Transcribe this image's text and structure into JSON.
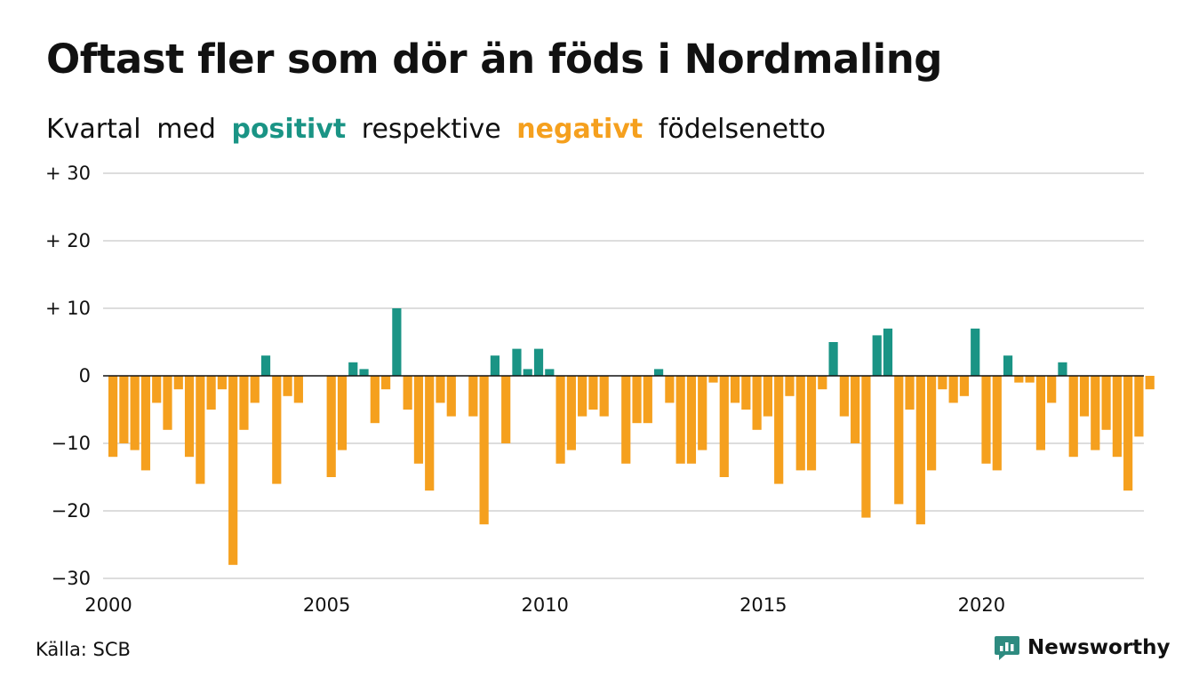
{
  "title": "Oftast fler som dör än föds i Nordmaling",
  "subtitle": {
    "part1": "Kvartal",
    "part2": "med",
    "positive": "positivt",
    "part3": "respektive",
    "negative": "negativt",
    "part4": "födelsenetto"
  },
  "source": "Källa: SCB",
  "brand": "Newsworthy",
  "colors": {
    "positive": "#1a9485",
    "negative": "#f5a01e",
    "grid": "#dddddd",
    "zero": "#111111",
    "text": "#111111"
  },
  "chart_data": {
    "type": "bar",
    "title": "Oftast fler som dör än föds i Nordmaling",
    "subtitle": "Kvartal med positivt respektive negativt födelsenetto",
    "x_start": "2000-Q1",
    "x_ticks": [
      "2000",
      "2005",
      "2010",
      "2015",
      "2020"
    ],
    "y_ticks": [
      {
        "value": 30,
        "label": "+ 30"
      },
      {
        "value": 20,
        "label": "+ 20"
      },
      {
        "value": 10,
        "label": "+ 10"
      },
      {
        "value": 0,
        "label": "0"
      },
      {
        "value": -10,
        "label": "−10"
      },
      {
        "value": -20,
        "label": "−20"
      },
      {
        "value": -30,
        "label": "−30"
      }
    ],
    "ylim": [
      -30,
      30
    ],
    "grid": true,
    "categories": [
      "2000-Q1",
      "2000-Q2",
      "2000-Q3",
      "2000-Q4",
      "2001-Q1",
      "2001-Q2",
      "2001-Q3",
      "2001-Q4",
      "2002-Q1",
      "2002-Q2",
      "2002-Q3",
      "2002-Q4",
      "2003-Q1",
      "2003-Q2",
      "2003-Q3",
      "2003-Q4",
      "2004-Q1",
      "2004-Q2",
      "2004-Q3",
      "2004-Q4",
      "2005-Q1",
      "2005-Q2",
      "2005-Q3",
      "2005-Q4",
      "2006-Q1",
      "2006-Q2",
      "2006-Q3",
      "2006-Q4",
      "2007-Q1",
      "2007-Q2",
      "2007-Q3",
      "2007-Q4",
      "2008-Q1",
      "2008-Q2",
      "2008-Q3",
      "2008-Q4",
      "2009-Q1",
      "2009-Q2",
      "2009-Q3",
      "2009-Q4",
      "2010-Q1",
      "2010-Q2",
      "2010-Q3",
      "2010-Q4",
      "2011-Q1",
      "2011-Q2",
      "2011-Q3",
      "2011-Q4",
      "2012-Q1",
      "2012-Q2",
      "2012-Q3",
      "2012-Q4",
      "2013-Q1",
      "2013-Q2",
      "2013-Q3",
      "2013-Q4",
      "2014-Q1",
      "2014-Q2",
      "2014-Q3",
      "2014-Q4",
      "2015-Q1",
      "2015-Q2",
      "2015-Q3",
      "2015-Q4",
      "2016-Q1",
      "2016-Q2",
      "2016-Q3",
      "2016-Q4",
      "2017-Q1",
      "2017-Q2",
      "2017-Q3",
      "2017-Q4",
      "2018-Q1",
      "2018-Q2",
      "2018-Q3",
      "2018-Q4",
      "2019-Q1",
      "2019-Q2",
      "2019-Q3",
      "2019-Q4",
      "2020-Q1",
      "2020-Q2",
      "2020-Q3",
      "2020-Q4",
      "2021-Q1",
      "2021-Q2",
      "2021-Q3",
      "2021-Q4",
      "2022-Q1",
      "2022-Q2",
      "2022-Q3",
      "2022-Q4",
      "2023-Q1",
      "2023-Q2",
      "2023-Q3",
      "2023-Q4"
    ],
    "values": [
      -12,
      -10,
      -11,
      -14,
      -4,
      -8,
      -2,
      -12,
      -16,
      -5,
      -2,
      -28,
      -8,
      -4,
      3,
      -16,
      -3,
      -4,
      0,
      0,
      -15,
      -11,
      2,
      1,
      -7,
      -2,
      10,
      -5,
      -13,
      -17,
      -4,
      -6,
      0,
      -6,
      -22,
      3,
      -10,
      4,
      1,
      4,
      1,
      -13,
      -11,
      -6,
      -5,
      -6,
      0,
      -13,
      -7,
      -7,
      1,
      -4,
      -13,
      -13,
      -11,
      -1,
      -15,
      -4,
      -5,
      -8,
      -6,
      -16,
      -3,
      -14,
      -14,
      -2,
      5,
      -6,
      -10,
      -21,
      6,
      7,
      -19,
      -5,
      -22,
      -14,
      -2,
      -4,
      -3,
      7,
      -13,
      -14,
      3,
      -1,
      -1,
      -11,
      -4,
      2,
      -12,
      -6,
      -11,
      -8,
      -12,
      -17,
      -9,
      -2
    ]
  }
}
